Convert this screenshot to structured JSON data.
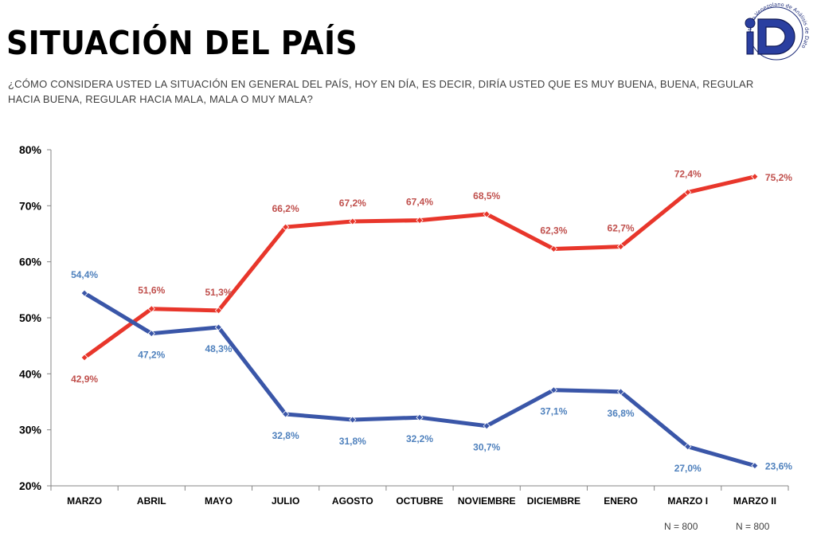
{
  "header": {
    "title": "SITUACIÓN DEL PAÍS",
    "question": "¿CÓMO CONSIDERA USTED LA SITUACIÓN EN GENERAL DEL PAÍS, HOY EN DÍA, ES DECIR, DIRÍA USTED QUE ES MUY BUENA, BUENA, REGULAR HACIA BUENA, REGULAR HACIA MALA, MALA O MUY MALA?"
  },
  "logo": {
    "text": "Instituto Venezolano de Análisis de Datos"
  },
  "notes": {
    "sample_1": "N = 800",
    "sample_2": "N = 800"
  },
  "colors": {
    "red": "#E8362B",
    "blue": "#3A56A8",
    "red_label": "#C0504D",
    "blue_label": "#4F81BD"
  },
  "chart_data": {
    "type": "line",
    "title": "SITUACIÓN DEL PAÍS",
    "xlabel": "",
    "ylabel": "",
    "ylim": [
      20,
      80
    ],
    "yticks": [
      "20%",
      "30%",
      "40%",
      "50%",
      "60%",
      "70%",
      "80%"
    ],
    "yticks_values": [
      20,
      30,
      40,
      50,
      60,
      70,
      80
    ],
    "categories": [
      "MARZO",
      "ABRIL",
      "MAYO",
      "JULIO",
      "AGOSTO",
      "OCTUBRE",
      "NOVIEMBRE",
      "DICIEMBRE",
      "ENERO",
      "MARZO I",
      "MARZO II"
    ],
    "legend": "none",
    "grid": false,
    "series": [
      {
        "name": "red",
        "color": "#E8362B",
        "values": [
          42.9,
          51.6,
          51.3,
          66.2,
          67.2,
          67.4,
          68.5,
          62.3,
          62.7,
          72.4,
          75.2
        ],
        "labels": [
          "42,9%",
          "51,6%",
          "51,3%",
          "66,2%",
          "67,2%",
          "67,4%",
          "68,5%",
          "62,3%",
          "62,7%",
          "72,4%",
          "75,2%"
        ]
      },
      {
        "name": "blue",
        "color": "#3A56A8",
        "values": [
          54.4,
          47.2,
          48.3,
          32.8,
          31.8,
          32.2,
          30.7,
          37.1,
          36.8,
          27.0,
          23.6
        ],
        "labels": [
          "54,4%",
          "47,2%",
          "48,3%",
          "32,8%",
          "31,8%",
          "32,2%",
          "30,7%",
          "37,1%",
          "36,8%",
          "27,0%",
          "23,6%"
        ]
      }
    ]
  }
}
